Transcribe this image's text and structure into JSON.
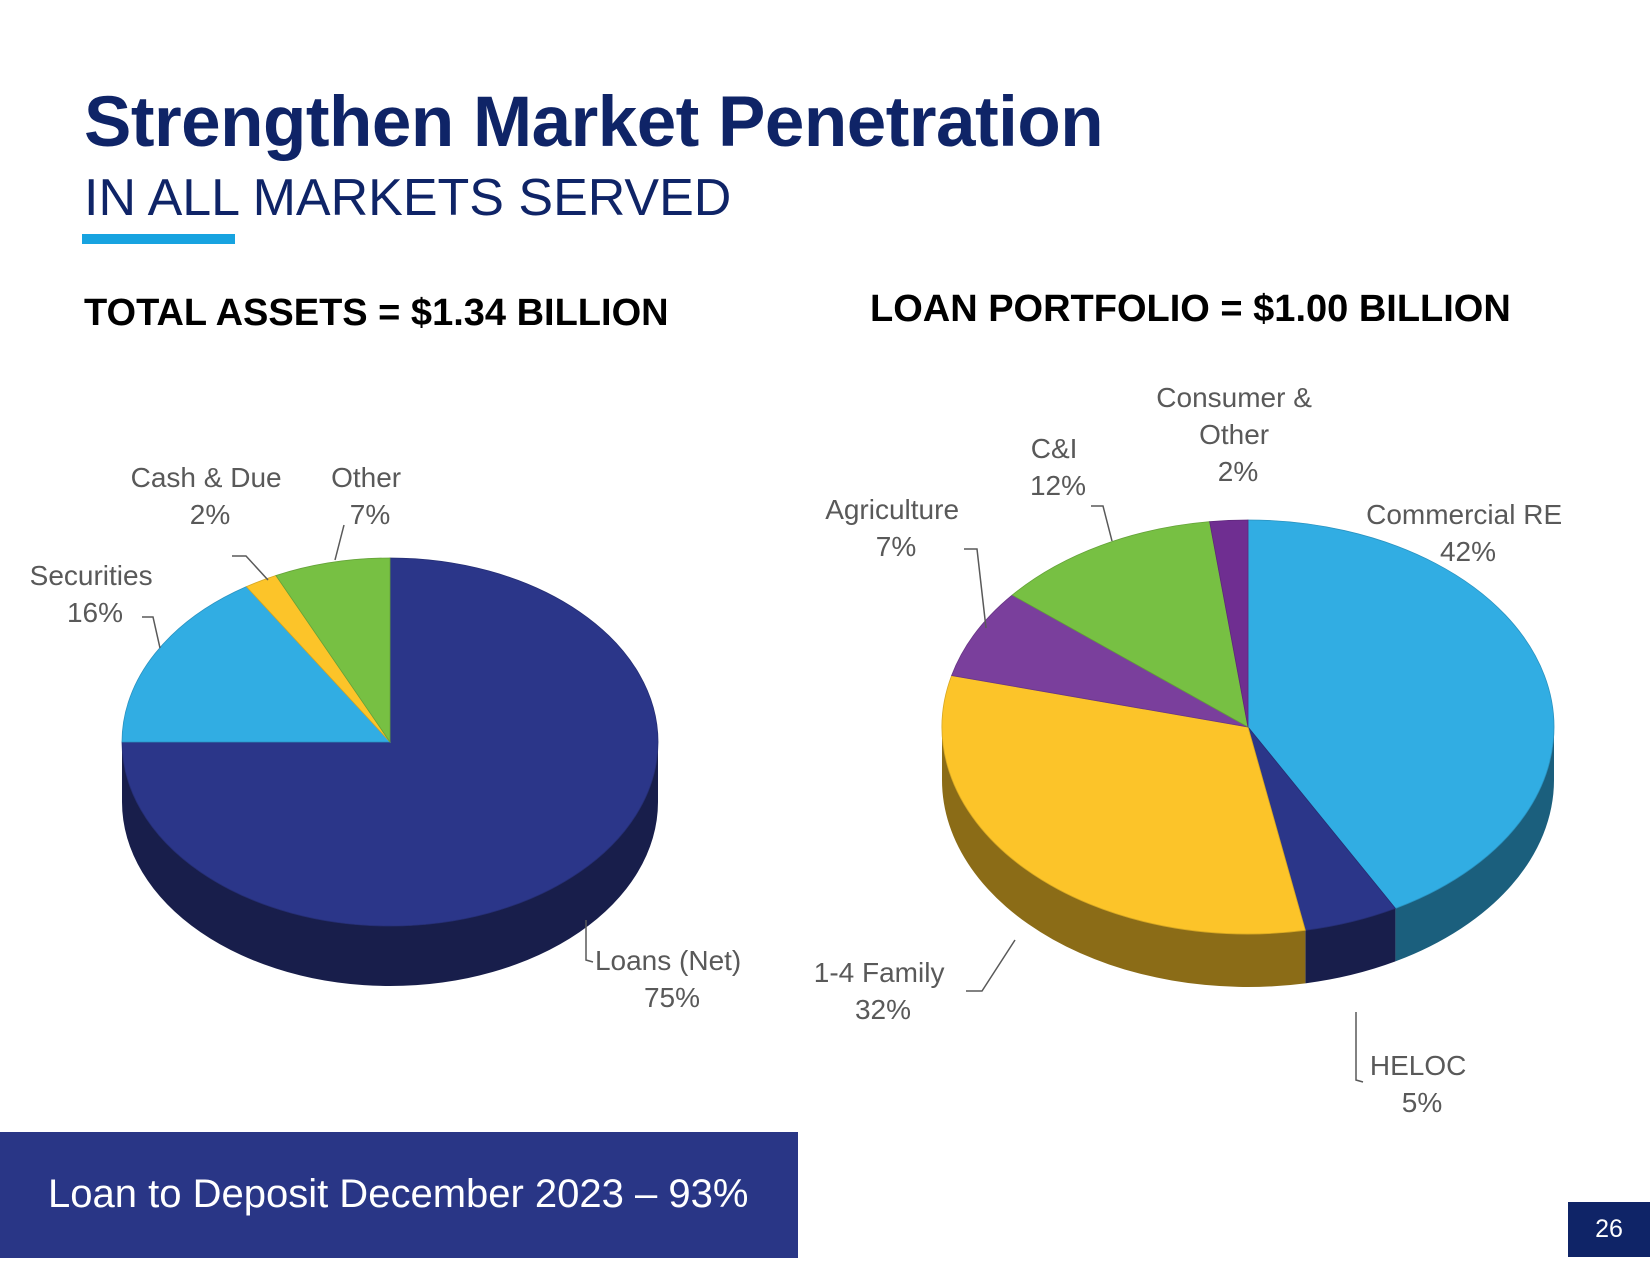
{
  "slide": {
    "title": "Strengthen Market Penetration",
    "subtitle": "IN ALL MARKETS SERVED",
    "footer": "Loan to Deposit December 2023 – 93%",
    "page_number": "26"
  },
  "colors": {
    "title": "#0f2467",
    "accent": "#17a3e0",
    "footer_band": "#293686"
  },
  "chart_data": [
    {
      "type": "pie",
      "title": "TOTAL ASSETS = $1.34 BILLION",
      "slices": [
        {
          "name": "Loans (Net)",
          "label": "Loans (Net)",
          "value": 75,
          "pct_label": "75%",
          "color": "#2b3689"
        },
        {
          "name": "Securities",
          "label": "Securities",
          "value": 16,
          "pct_label": "16%",
          "color": "#31ade3"
        },
        {
          "name": "Cash & Due",
          "label": "Cash & Due",
          "value": 2,
          "pct_label": "2%",
          "color": "#fcc429"
        },
        {
          "name": "Other",
          "label": "Other",
          "value": 7,
          "pct_label": "7%",
          "color": "#77c043"
        }
      ]
    },
    {
      "type": "pie",
      "title": "LOAN PORTFOLIO = $1.00 BILLION",
      "slices": [
        {
          "name": "Commercial RE",
          "label": "Commercial RE",
          "value": 42,
          "pct_label": "42%",
          "color": "#31ade3"
        },
        {
          "name": "HELOC",
          "label": "HELOC",
          "value": 5,
          "pct_label": "5%",
          "color": "#2b3689"
        },
        {
          "name": "1-4 Family",
          "label": "1-4 Family",
          "value": 32,
          "pct_label": "32%",
          "color": "#fcc429"
        },
        {
          "name": "Agriculture",
          "label": "Agriculture",
          "value": 7,
          "pct_label": "7%",
          "color": "#7a3f9c"
        },
        {
          "name": "C&I",
          "label": "C&I",
          "value": 12,
          "pct_label": "12%",
          "color": "#77c043"
        },
        {
          "name": "Consumer & Other",
          "label": "Consumer &\nOther",
          "value": 2,
          "pct_label": "2%",
          "color": "#6f2e91"
        }
      ]
    }
  ]
}
